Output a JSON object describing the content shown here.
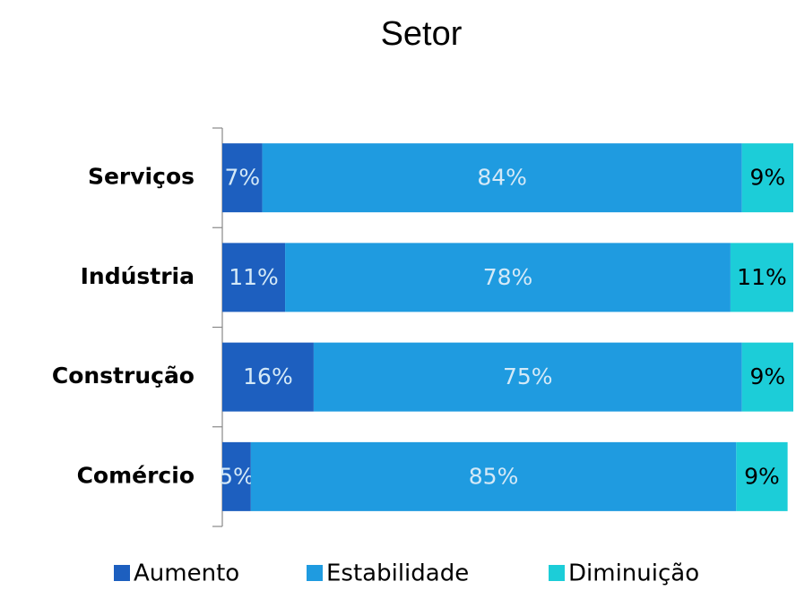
{
  "chart_data": {
    "type": "stacked_barh",
    "title": "Setor",
    "categories": [
      "Serviços",
      "Indústria",
      "Construção",
      "Comércio"
    ],
    "series": [
      {
        "name": "Aumento",
        "color": "#1d5fbf",
        "values": [
          7,
          11,
          16,
          5
        ],
        "value_labels": [
          "7%",
          "11%",
          "16%",
          "5%"
        ]
      },
      {
        "name": "Estabilidade",
        "color": "#1f9be0",
        "values": [
          84,
          78,
          75,
          85
        ],
        "value_labels": [
          "84%",
          "78%",
          "75%",
          "85%"
        ]
      },
      {
        "name": "Diminuição",
        "color": "#1ccdd8",
        "values": [
          9,
          11,
          9,
          9
        ],
        "value_labels": [
          "9%",
          "11%",
          "9%",
          "9%"
        ]
      }
    ],
    "xlim": [
      0,
      100
    ],
    "legend": "bottom"
  }
}
